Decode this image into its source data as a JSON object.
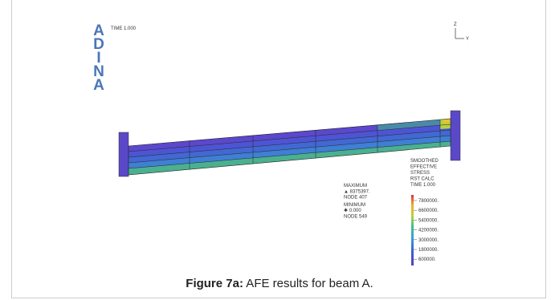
{
  "logo": [
    "A",
    "D",
    "I",
    "N",
    "A"
  ],
  "time_label": "TIME 1.000",
  "axes": {
    "z": "Z",
    "y": "Y"
  },
  "result_legend": {
    "lines": [
      "SMOOTHED",
      "EFFECTIVE",
      "STRESS",
      "RST CALC",
      "TIME 1.000"
    ],
    "scale_labels": [
      "7800000.",
      "6600000.",
      "5400000.",
      "4200000.",
      "3000000.",
      "1800000.",
      "600000."
    ]
  },
  "extremes": {
    "lines": [
      "MAXIMUM",
      "▲ 8375397.",
      "NODE 407",
      "MINIMUM",
      "✱ 0.000",
      "NODE 549"
    ]
  },
  "caption": {
    "label": "Figure 7a:",
    "text": " AFE results for beam A."
  }
}
